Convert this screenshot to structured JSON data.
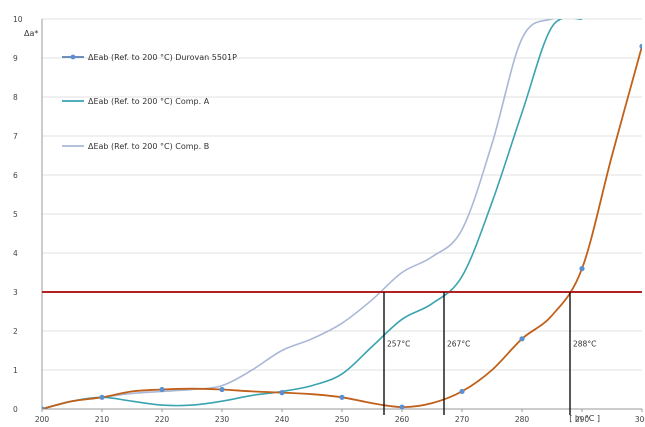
{
  "chart_data": {
    "type": "line",
    "title": "",
    "ylabel": "Δa*",
    "xlabel": "[ in °C ]",
    "xlim": [
      200,
      300
    ],
    "ylim": [
      0,
      10
    ],
    "x_ticks": [
      200,
      210,
      220,
      230,
      240,
      250,
      260,
      270,
      280,
      290,
      300
    ],
    "x_tick_labels": [
      "200",
      "210",
      "220",
      "230",
      "240",
      "250",
      "260",
      "270",
      "280",
      "290",
      "300"
    ],
    "y_ticks": [
      0,
      1,
      2,
      3,
      4,
      5,
      6,
      7,
      8,
      9,
      10
    ],
    "y_tick_labels": [
      "0",
      "1",
      "2",
      "3",
      "4",
      "5",
      "6",
      "7",
      "8",
      "9",
      "10"
    ],
    "grid": true,
    "legend_placement": "top-left",
    "threshold": {
      "y": 3,
      "color": "#b22222"
    },
    "series": [
      {
        "name": "ΔEab (Ref. to 200 °C) Durovan 5501P",
        "color": "#c0601a",
        "legend_color": "#5b7fb5",
        "marker_color": "#5b8fd0",
        "markers": true,
        "x": [
          200,
          205,
          210,
          215,
          220,
          225,
          230,
          235,
          240,
          245,
          250,
          255,
          260,
          265,
          270,
          275,
          280,
          285,
          290,
          295,
          300
        ],
        "y": [
          0,
          0.2,
          0.3,
          0.45,
          0.5,
          0.52,
          0.5,
          0.45,
          0.42,
          0.38,
          0.3,
          0.15,
          0.05,
          0.15,
          0.45,
          1.0,
          1.8,
          2.4,
          3.6,
          6.5,
          9.3
        ]
      },
      {
        "name": "ΔEab (Ref. to 200 °C) Comp. A",
        "color": "#3aa3b0",
        "markers": false,
        "x": [
          200,
          205,
          210,
          215,
          220,
          225,
          230,
          235,
          240,
          245,
          250,
          255,
          260,
          265,
          270,
          275,
          280,
          285,
          290
        ],
        "y": [
          0,
          0.2,
          0.3,
          0.2,
          0.1,
          0.1,
          0.2,
          0.35,
          0.45,
          0.6,
          0.9,
          1.6,
          2.3,
          2.7,
          3.4,
          5.3,
          7.6,
          9.8,
          10
        ]
      },
      {
        "name": "ΔEab (Ref. to 200 °C) Comp. B",
        "color": "#a9b8d6",
        "markers": false,
        "x": [
          200,
          205,
          210,
          215,
          220,
          225,
          230,
          235,
          240,
          245,
          250,
          255,
          260,
          265,
          270,
          275,
          280,
          285,
          290
        ],
        "y": [
          0,
          0.2,
          0.3,
          0.4,
          0.45,
          0.5,
          0.6,
          1.0,
          1.5,
          1.8,
          2.2,
          2.8,
          3.5,
          3.9,
          4.6,
          6.8,
          9.5,
          10,
          10
        ]
      }
    ],
    "annotations": [
      {
        "x": 257,
        "text": "257°C"
      },
      {
        "x": 267,
        "text": "267°C"
      },
      {
        "x": 288,
        "text": "288°C"
      }
    ]
  }
}
